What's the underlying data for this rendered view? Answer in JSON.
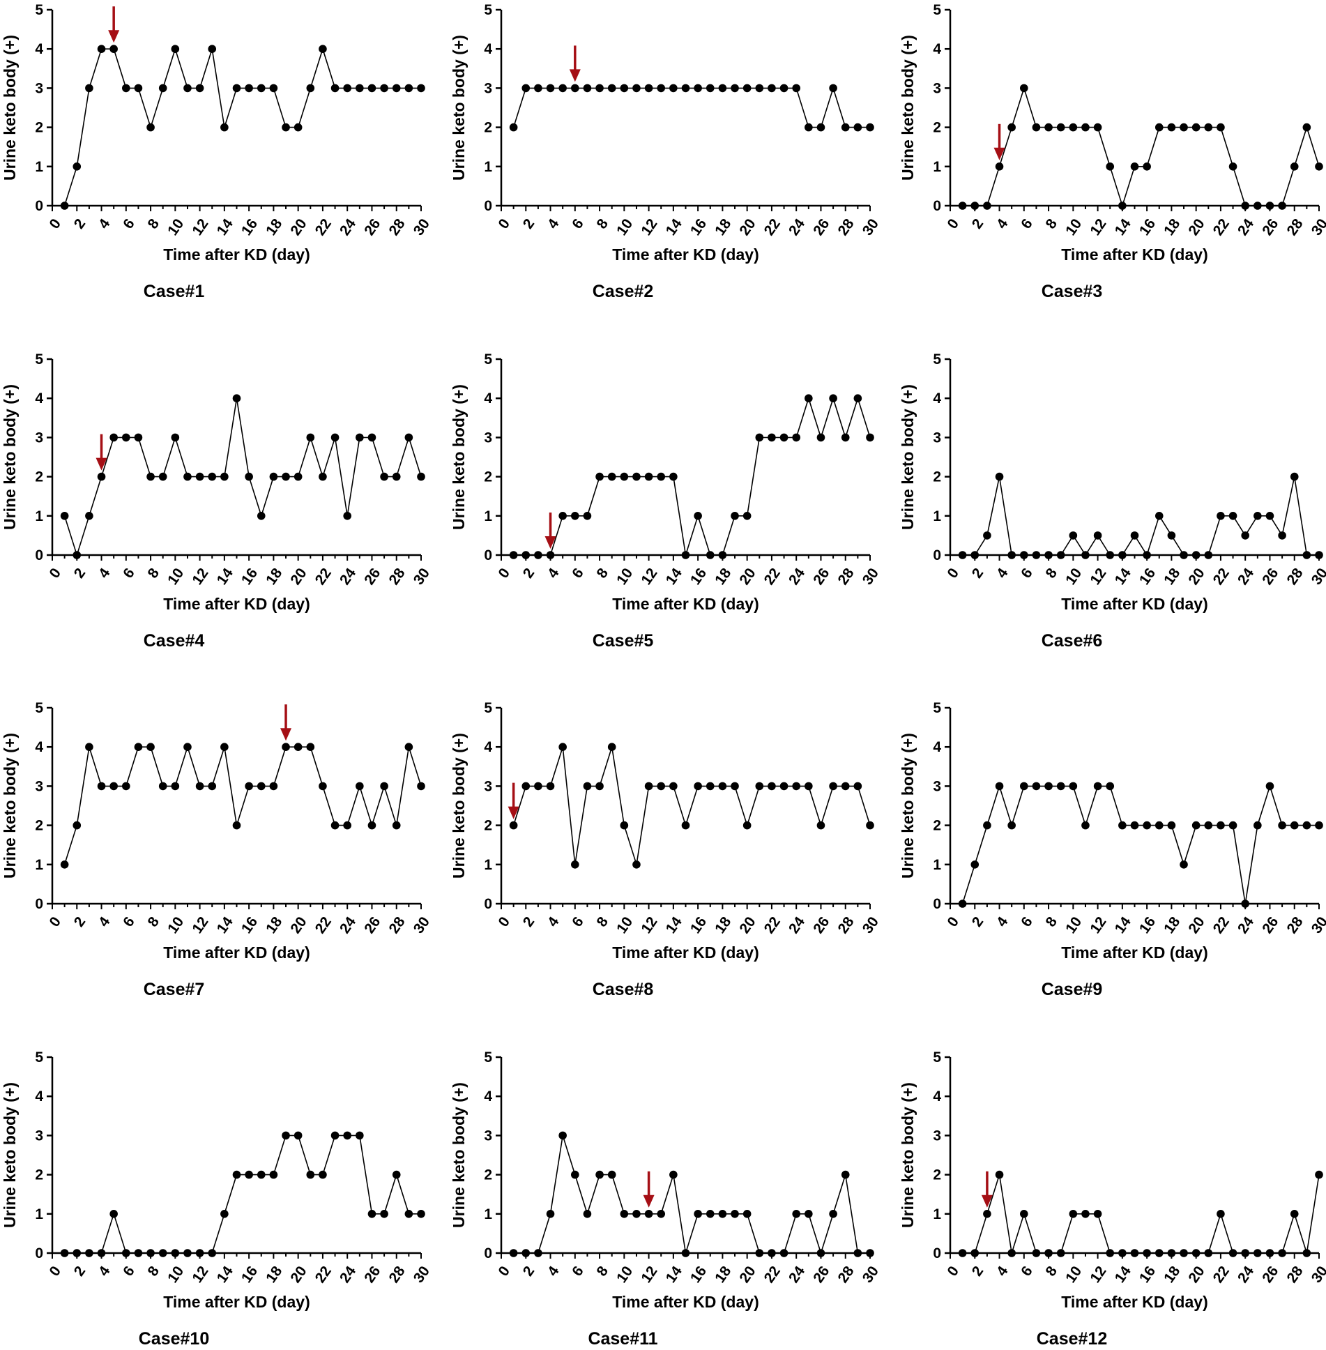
{
  "figure": {
    "arrow_color": "#a50f15",
    "line_color": "#000000",
    "marker_color": "#000000"
  },
  "chart_data": [
    {
      "type": "line",
      "title": "Case#1",
      "xlabel": "Time after KD (day)",
      "ylabel": "Urine keto body (+)",
      "xlim": [
        0,
        30
      ],
      "ylim": [
        0,
        5
      ],
      "xticks": [
        "0",
        "2",
        "4",
        "6",
        "8",
        "10",
        "12",
        "14",
        "16",
        "18",
        "20",
        "22",
        "24",
        "26",
        "28",
        "30"
      ],
      "yticks": [
        "0",
        "1",
        "2",
        "3",
        "4",
        "5"
      ],
      "x": [
        1,
        2,
        3,
        4,
        5,
        6,
        7,
        8,
        9,
        10,
        11,
        12,
        13,
        14,
        15,
        16,
        17,
        18,
        19,
        20,
        21,
        22,
        23,
        24,
        25,
        26,
        27,
        28,
        29,
        30
      ],
      "values": [
        0,
        1,
        3,
        4,
        4,
        3,
        3,
        2,
        3,
        4,
        3,
        3,
        4,
        2,
        3,
        3,
        3,
        3,
        2,
        2,
        3,
        4,
        3,
        3,
        3,
        3,
        3,
        3,
        3,
        3
      ],
      "arrow_day": 5
    },
    {
      "type": "line",
      "title": "Case#2",
      "xlabel": "Time after KD (day)",
      "ylabel": "Urine keto body (+)",
      "xlim": [
        0,
        30
      ],
      "ylim": [
        0,
        5
      ],
      "xticks": [
        "0",
        "2",
        "4",
        "6",
        "8",
        "10",
        "12",
        "14",
        "16",
        "18",
        "20",
        "22",
        "24",
        "26",
        "28",
        "30"
      ],
      "yticks": [
        "0",
        "1",
        "2",
        "3",
        "4",
        "5"
      ],
      "x": [
        1,
        2,
        3,
        4,
        5,
        6,
        7,
        8,
        9,
        10,
        11,
        12,
        13,
        14,
        15,
        16,
        17,
        18,
        19,
        20,
        21,
        22,
        23,
        24,
        25,
        26,
        27,
        28,
        29,
        30
      ],
      "values": [
        2,
        3,
        3,
        3,
        3,
        3,
        3,
        3,
        3,
        3,
        3,
        3,
        3,
        3,
        3,
        3,
        3,
        3,
        3,
        3,
        3,
        3,
        3,
        3,
        2,
        2,
        3,
        2,
        2,
        2
      ],
      "arrow_day": 6
    },
    {
      "type": "line",
      "title": "Case#3",
      "xlabel": "Time after KD (day)",
      "ylabel": "Urine keto body (+)",
      "xlim": [
        0,
        30
      ],
      "ylim": [
        0,
        5
      ],
      "xticks": [
        "0",
        "2",
        "4",
        "6",
        "8",
        "10",
        "12",
        "14",
        "16",
        "18",
        "20",
        "22",
        "24",
        "26",
        "28",
        "30"
      ],
      "yticks": [
        "0",
        "1",
        "2",
        "3",
        "4",
        "5"
      ],
      "x": [
        1,
        2,
        3,
        4,
        5,
        6,
        7,
        8,
        9,
        10,
        11,
        12,
        13,
        14,
        15,
        16,
        17,
        18,
        19,
        20,
        21,
        22,
        23,
        24,
        25,
        26,
        27,
        28,
        29,
        30
      ],
      "values": [
        0,
        0,
        0,
        1,
        2,
        3,
        2,
        2,
        2,
        2,
        2,
        2,
        1,
        0,
        1,
        1,
        2,
        2,
        2,
        2,
        2,
        2,
        1,
        0,
        0,
        0,
        0,
        1,
        2,
        1
      ],
      "arrow_day": 4
    },
    {
      "type": "line",
      "title": "Case#4",
      "xlabel": "Time after KD (day)",
      "ylabel": "Urine keto body (+)",
      "xlim": [
        0,
        30
      ],
      "ylim": [
        0,
        5
      ],
      "xticks": [
        "0",
        "2",
        "4",
        "6",
        "8",
        "10",
        "12",
        "14",
        "16",
        "18",
        "20",
        "22",
        "24",
        "26",
        "28",
        "30"
      ],
      "yticks": [
        "0",
        "1",
        "2",
        "3",
        "4",
        "5"
      ],
      "x": [
        1,
        2,
        3,
        4,
        5,
        6,
        7,
        8,
        9,
        10,
        11,
        12,
        13,
        14,
        15,
        16,
        17,
        18,
        19,
        20,
        21,
        22,
        23,
        24,
        25,
        26,
        27,
        28,
        29,
        30
      ],
      "values": [
        1,
        0,
        1,
        2,
        3,
        3,
        3,
        2,
        2,
        3,
        2,
        2,
        2,
        2,
        4,
        2,
        1,
        2,
        2,
        2,
        3,
        2,
        3,
        1,
        3,
        3,
        2,
        2,
        3,
        2
      ],
      "arrow_day": 4
    },
    {
      "type": "line",
      "title": "Case#5",
      "xlabel": "Time after KD (day)",
      "ylabel": "Urine keto body (+)",
      "xlim": [
        0,
        30
      ],
      "ylim": [
        0,
        5
      ],
      "xticks": [
        "0",
        "2",
        "4",
        "6",
        "8",
        "10",
        "12",
        "14",
        "16",
        "18",
        "20",
        "22",
        "24",
        "26",
        "28",
        "30"
      ],
      "yticks": [
        "0",
        "1",
        "2",
        "3",
        "4",
        "5"
      ],
      "x": [
        1,
        2,
        3,
        4,
        5,
        6,
        7,
        8,
        9,
        10,
        11,
        12,
        13,
        14,
        15,
        16,
        17,
        18,
        19,
        20,
        21,
        22,
        23,
        24,
        25,
        26,
        27,
        28,
        29,
        30
      ],
      "values": [
        0,
        0,
        0,
        0,
        1,
        1,
        1,
        2,
        2,
        2,
        2,
        2,
        2,
        2,
        0,
        1,
        0,
        0,
        1,
        1,
        3,
        3,
        3,
        3,
        4,
        3,
        4,
        3,
        4,
        3
      ],
      "arrow_day": 4
    },
    {
      "type": "line",
      "title": "Case#6",
      "xlabel": "Time after KD (day)",
      "ylabel": "Urine keto body (+)",
      "xlim": [
        0,
        30
      ],
      "ylim": [
        0,
        5
      ],
      "xticks": [
        "0",
        "2",
        "4",
        "6",
        "8",
        "10",
        "12",
        "14",
        "16",
        "18",
        "20",
        "22",
        "24",
        "26",
        "28",
        "30"
      ],
      "yticks": [
        "0",
        "1",
        "2",
        "3",
        "4",
        "5"
      ],
      "x": [
        1,
        2,
        3,
        4,
        5,
        6,
        7,
        8,
        9,
        10,
        11,
        12,
        13,
        14,
        15,
        16,
        17,
        18,
        19,
        20,
        21,
        22,
        23,
        24,
        25,
        26,
        27,
        28,
        29,
        30
      ],
      "values": [
        0,
        0,
        0.5,
        2,
        0,
        0,
        0,
        0,
        0,
        0.5,
        0,
        0.5,
        0,
        0,
        0.5,
        0,
        1,
        0.5,
        0,
        0,
        0,
        1,
        1,
        0.5,
        1,
        1,
        0.5,
        2,
        0,
        0
      ],
      "arrow_day": null
    },
    {
      "type": "line",
      "title": "Case#7",
      "xlabel": "Time after KD (day)",
      "ylabel": "Urine keto body (+)",
      "xlim": [
        0,
        30
      ],
      "ylim": [
        0,
        5
      ],
      "xticks": [
        "0",
        "2",
        "4",
        "6",
        "8",
        "10",
        "12",
        "14",
        "16",
        "18",
        "20",
        "22",
        "24",
        "26",
        "28",
        "30"
      ],
      "yticks": [
        "0",
        "1",
        "2",
        "3",
        "4",
        "5"
      ],
      "x": [
        1,
        2,
        3,
        4,
        5,
        6,
        7,
        8,
        9,
        10,
        11,
        12,
        13,
        14,
        15,
        16,
        17,
        18,
        19,
        20,
        21,
        22,
        23,
        24,
        25,
        26,
        27,
        28,
        29,
        30
      ],
      "values": [
        1,
        2,
        4,
        3,
        3,
        3,
        4,
        4,
        3,
        3,
        4,
        3,
        3,
        4,
        2,
        3,
        3,
        3,
        4,
        4,
        4,
        3,
        2,
        2,
        3,
        2,
        3,
        2,
        4,
        3
      ],
      "arrow_day": 19
    },
    {
      "type": "line",
      "title": "Case#8",
      "xlabel": "Time after KD (day)",
      "ylabel": "Urine keto body (+)",
      "xlim": [
        0,
        30
      ],
      "ylim": [
        0,
        5
      ],
      "xticks": [
        "0",
        "2",
        "4",
        "6",
        "8",
        "10",
        "12",
        "14",
        "16",
        "18",
        "20",
        "22",
        "24",
        "26",
        "28",
        "30"
      ],
      "yticks": [
        "0",
        "1",
        "2",
        "3",
        "4",
        "5"
      ],
      "x": [
        1,
        2,
        3,
        4,
        5,
        6,
        7,
        8,
        9,
        10,
        11,
        12,
        13,
        14,
        15,
        16,
        17,
        18,
        19,
        20,
        21,
        22,
        23,
        24,
        25,
        26,
        27,
        28,
        29,
        30
      ],
      "values": [
        2,
        3,
        3,
        3,
        4,
        1,
        3,
        3,
        4,
        2,
        1,
        3,
        3,
        3,
        2,
        3,
        3,
        3,
        3,
        2,
        3,
        3,
        3,
        3,
        3,
        2,
        3,
        3,
        3,
        2
      ],
      "arrow_day": 1
    },
    {
      "type": "line",
      "title": "Case#9",
      "xlabel": "Time after KD (day)",
      "ylabel": "Urine keto body (+)",
      "xlim": [
        0,
        30
      ],
      "ylim": [
        0,
        5
      ],
      "xticks": [
        "0",
        "2",
        "4",
        "6",
        "8",
        "10",
        "12",
        "14",
        "16",
        "18",
        "20",
        "22",
        "24",
        "26",
        "28",
        "30"
      ],
      "yticks": [
        "0",
        "1",
        "2",
        "3",
        "4",
        "5"
      ],
      "x": [
        1,
        2,
        3,
        4,
        5,
        6,
        7,
        8,
        9,
        10,
        11,
        12,
        13,
        14,
        15,
        16,
        17,
        18,
        19,
        20,
        21,
        22,
        23,
        24,
        25,
        26,
        27,
        28,
        29,
        30
      ],
      "values": [
        0,
        1,
        2,
        3,
        2,
        3,
        3,
        3,
        3,
        3,
        2,
        3,
        3,
        2,
        2,
        2,
        2,
        2,
        1,
        2,
        2,
        2,
        2,
        0,
        2,
        3,
        2,
        2,
        2,
        2
      ],
      "arrow_day": null
    },
    {
      "type": "line",
      "title": "Case#10",
      "xlabel": "Time after KD (day)",
      "ylabel": "Urine keto body (+)",
      "xlim": [
        0,
        30
      ],
      "ylim": [
        0,
        5
      ],
      "xticks": [
        "0",
        "2",
        "4",
        "6",
        "8",
        "10",
        "12",
        "14",
        "16",
        "18",
        "20",
        "22",
        "24",
        "26",
        "28",
        "30"
      ],
      "yticks": [
        "0",
        "1",
        "2",
        "3",
        "4",
        "5"
      ],
      "x": [
        1,
        2,
        3,
        4,
        5,
        6,
        7,
        8,
        9,
        10,
        11,
        12,
        13,
        14,
        15,
        16,
        17,
        18,
        19,
        20,
        21,
        22,
        23,
        24,
        25,
        26,
        27,
        28,
        29,
        30
      ],
      "values": [
        0,
        0,
        0,
        0,
        1,
        0,
        0,
        0,
        0,
        0,
        0,
        0,
        0,
        1,
        2,
        2,
        2,
        2,
        3,
        3,
        2,
        2,
        3,
        3,
        3,
        1,
        1,
        2,
        1,
        1
      ],
      "arrow_day": null
    },
    {
      "type": "line",
      "title": "Case#11",
      "xlabel": "Time after KD (day)",
      "ylabel": "Urine keto body (+)",
      "xlim": [
        0,
        30
      ],
      "ylim": [
        0,
        5
      ],
      "xticks": [
        "0",
        "2",
        "4",
        "6",
        "8",
        "10",
        "12",
        "14",
        "16",
        "18",
        "20",
        "22",
        "24",
        "26",
        "28",
        "30"
      ],
      "yticks": [
        "0",
        "1",
        "2",
        "3",
        "4",
        "5"
      ],
      "x": [
        1,
        2,
        3,
        4,
        5,
        6,
        7,
        8,
        9,
        10,
        11,
        12,
        13,
        14,
        15,
        16,
        17,
        18,
        19,
        20,
        21,
        22,
        23,
        24,
        25,
        26,
        27,
        28,
        29,
        30
      ],
      "values": [
        0,
        0,
        0,
        1,
        3,
        2,
        1,
        2,
        2,
        1,
        1,
        1,
        1,
        2,
        0,
        1,
        1,
        1,
        1,
        1,
        0,
        0,
        0,
        1,
        1,
        0,
        1,
        2,
        0,
        0
      ],
      "arrow_day": 12
    },
    {
      "type": "line",
      "title": "Case#12",
      "xlabel": "Time after KD (day)",
      "ylabel": "Urine keto body (+)",
      "xlim": [
        0,
        30
      ],
      "ylim": [
        0,
        5
      ],
      "xticks": [
        "0",
        "2",
        "4",
        "6",
        "8",
        "10",
        "12",
        "14",
        "16",
        "18",
        "20",
        "22",
        "24",
        "26",
        "28",
        "30"
      ],
      "yticks": [
        "0",
        "1",
        "2",
        "3",
        "4",
        "5"
      ],
      "x": [
        1,
        2,
        3,
        4,
        5,
        6,
        7,
        8,
        9,
        10,
        11,
        12,
        13,
        14,
        15,
        16,
        17,
        18,
        19,
        20,
        21,
        22,
        23,
        24,
        25,
        26,
        27,
        28,
        29,
        30
      ],
      "values": [
        0,
        0,
        1,
        2,
        0,
        1,
        0,
        0,
        0,
        1,
        1,
        1,
        0,
        0,
        0,
        0,
        0,
        0,
        0,
        0,
        0,
        1,
        0,
        0,
        0,
        0,
        0,
        1,
        0,
        2
      ],
      "arrow_day": 3
    }
  ]
}
